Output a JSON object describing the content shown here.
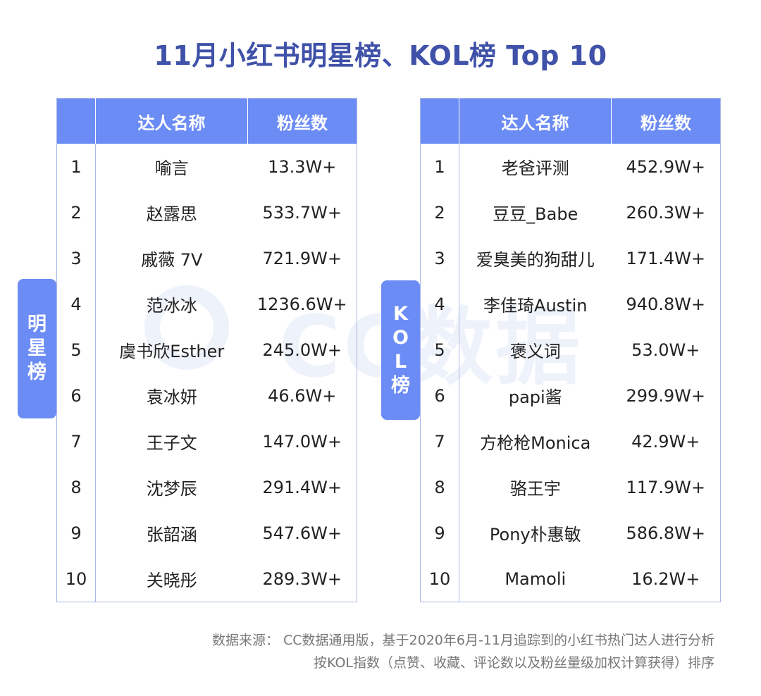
{
  "title": "11月小红书明星榜、KOL榜 Top 10",
  "watermark": "CC数据",
  "star_board": {
    "tab_label": "明星榜",
    "headers": [
      "",
      "达人名称",
      "粉丝数"
    ],
    "rows": [
      {
        "rank": "1",
        "name": "喻言",
        "fans": "13.3W+"
      },
      {
        "rank": "2",
        "name": "赵露思",
        "fans": "533.7W+"
      },
      {
        "rank": "3",
        "name": "戚薇 7V",
        "fans": "721.9W+"
      },
      {
        "rank": "4",
        "name": "范冰冰",
        "fans": "1236.6W+"
      },
      {
        "rank": "5",
        "name": "虞书欣Esther",
        "fans": "245.0W+"
      },
      {
        "rank": "6",
        "name": "袁冰妍",
        "fans": "46.6W+"
      },
      {
        "rank": "7",
        "name": "王子文",
        "fans": "147.0W+"
      },
      {
        "rank": "8",
        "name": "沈梦辰",
        "fans": "291.4W+"
      },
      {
        "rank": "9",
        "name": "张韶涵",
        "fans": "547.6W+"
      },
      {
        "rank": "10",
        "name": "关晓彤",
        "fans": "289.3W+"
      }
    ]
  },
  "kol_board": {
    "tab_label": "KOL榜",
    "headers": [
      "",
      "达人名称",
      "粉丝数"
    ],
    "rows": [
      {
        "rank": "1",
        "name": "老爸评测",
        "fans": "452.9W+"
      },
      {
        "rank": "2",
        "name": "豆豆_Babe",
        "fans": "260.3W+"
      },
      {
        "rank": "3",
        "name": "爱臭美的狗甜儿",
        "fans": "171.4W+"
      },
      {
        "rank": "4",
        "name": "李佳琦Austin",
        "fans": "940.8W+"
      },
      {
        "rank": "5",
        "name": "褒义词",
        "fans": "53.0W+"
      },
      {
        "rank": "6",
        "name": "papi酱",
        "fans": "299.9W+"
      },
      {
        "rank": "7",
        "name": "方枪枪Monica",
        "fans": "42.9W+"
      },
      {
        "rank": "8",
        "name": "骆王宇",
        "fans": "117.9W+"
      },
      {
        "rank": "9",
        "name": "Pony朴惠敏",
        "fans": "586.8W+"
      },
      {
        "rank": "10",
        "name": "Mamoli",
        "fans": "16.2W+"
      }
    ]
  },
  "source": {
    "line1": "数据来源： CC数据通用版，基于2020年6月-11月追踪到的小红书热门达人进行分析",
    "line2": "按KOL指数（点赞、收藏、评论数以及粉丝量级加权计算获得）排序"
  },
  "colors": {
    "title": "#3f51a8",
    "header_bg": "#6c8cf5",
    "border": "#a9b6ea"
  }
}
